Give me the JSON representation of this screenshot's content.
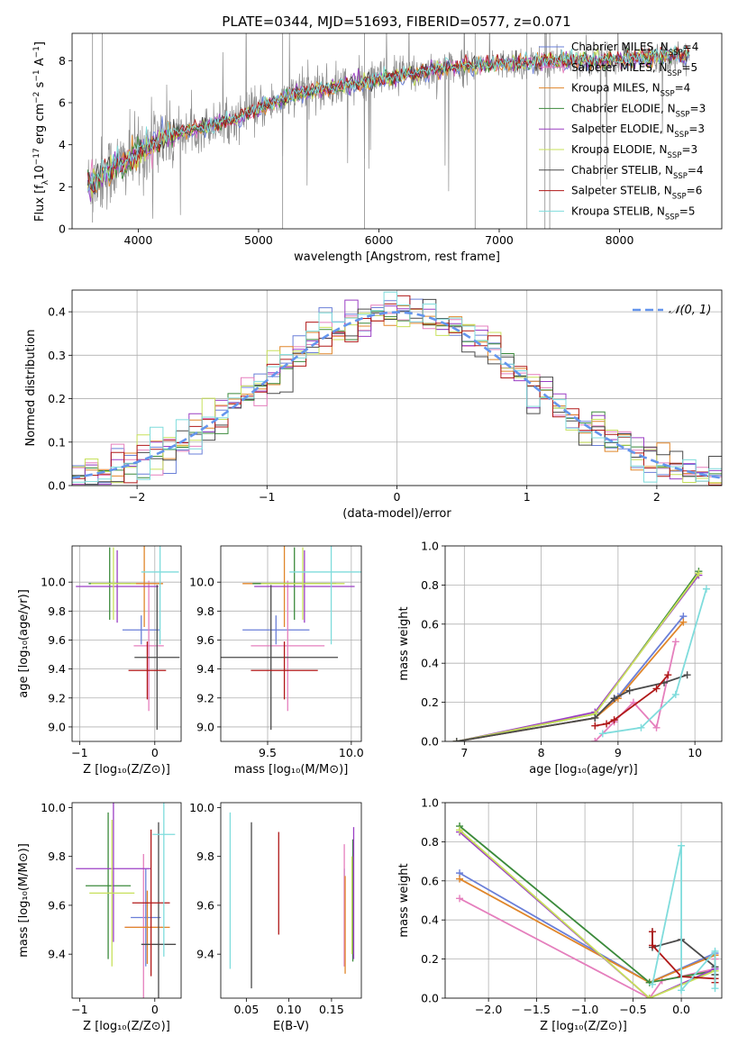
{
  "figure_title": "PLATE=0344, MJD=51693, FIBERID=0577, z=0.071",
  "colors": {
    "Chabrier MILES": "#6a7fd8",
    "Salpeter MILES": "#e57fbd",
    "Kroupa MILES": "#e0862a",
    "Chabrier ELODIE": "#3b8a3b",
    "Salpeter ELODIE": "#9b3fc4",
    "Kroupa ELODIE": "#c7e05a",
    "Chabrier STELIB": "#4a4a4a",
    "Salpeter STELIB": "#b01818",
    "Kroupa STELIB": "#7fdcdc",
    "data": "#8c8c8c",
    "normal": "#6495ed"
  },
  "chart_data": [
    {
      "id": "spectrum",
      "type": "line",
      "title": "PLATE=0344, MJD=51693, FIBERID=0577, z=0.071",
      "xlabel": "wavelength [Angstrom, rest frame]",
      "ylabel_parts": [
        "Flux [f",
        "λ",
        "10",
        "−17",
        " erg cm",
        "−2",
        " s",
        "−1",
        " A",
        "−1",
        "]"
      ],
      "xlim": [
        3450,
        8850
      ],
      "ylim": [
        0,
        9.3
      ],
      "xticks": [
        4000,
        5000,
        6000,
        7000,
        8000
      ],
      "yticks": [
        0,
        2,
        4,
        6,
        8
      ],
      "legend_position": "upper-right",
      "legend": [
        {
          "name": "Chabrier MILES",
          "nssp": "4"
        },
        {
          "name": "Salpeter MILES",
          "nssp": "5"
        },
        {
          "name": "Kroupa MILES",
          "nssp": "4"
        },
        {
          "name": "Chabrier ELODIE",
          "nssp": "3"
        },
        {
          "name": "Salpeter ELODIE",
          "nssp": "3"
        },
        {
          "name": "Kroupa ELODIE",
          "nssp": "3"
        },
        {
          "name": "Chabrier STELIB",
          "nssp": "4"
        },
        {
          "name": "Salpeter STELIB",
          "nssp": "6"
        },
        {
          "name": "Kroupa STELIB",
          "nssp": "5"
        }
      ],
      "legend_label_template": [
        "N",
        "SSP",
        "="
      ],
      "continuum": {
        "x": [
          3580,
          3700,
          3850,
          4000,
          4200,
          4500,
          4800,
          5000,
          5300,
          5600,
          6000,
          6300,
          6600,
          6900,
          7200,
          7500,
          7800,
          8100,
          8400,
          8580
        ],
        "y": [
          2.0,
          2.6,
          3.0,
          3.6,
          4.3,
          4.8,
          5.2,
          5.7,
          6.4,
          6.7,
          7.1,
          7.4,
          7.7,
          7.8,
          7.9,
          8.0,
          8.0,
          8.1,
          8.2,
          8.3
        ]
      }
    },
    {
      "id": "residuals",
      "type": "histogram",
      "xlabel": "(data-model)/error",
      "ylabel": "Normed distribution",
      "xlim": [
        -2.5,
        2.5
      ],
      "ylim": [
        0,
        0.45
      ],
      "xticks": [
        -2,
        -1,
        0,
        1,
        2
      ],
      "yticks": [
        0.0,
        0.1,
        0.2,
        0.3,
        0.4
      ],
      "bin_width": 0.1,
      "grid": true,
      "legend_position": "upper-right",
      "legend_label": "𝒩(0, 1)"
    },
    {
      "id": "age_vs_Z",
      "type": "errorbar",
      "xlabel": "Z [log₁₀(Z/Z⊙)]",
      "ylabel": "age  [log₁₀(age/yr)]",
      "xlim": [
        -1.1,
        0.35
      ],
      "ylim": [
        8.9,
        10.25
      ],
      "xticks": [
        -1,
        0
      ],
      "yticks": [
        9.0,
        9.2,
        9.4,
        9.6,
        9.8,
        10.0
      ],
      "grid": true,
      "points": [
        {
          "series": "Chabrier MILES",
          "x": -0.18,
          "xerr": 0.25,
          "y": 9.67,
          "yerr": 0.1
        },
        {
          "series": "Salpeter MILES",
          "x": -0.08,
          "xerr": 0.2,
          "y": 9.56,
          "yerr": 0.45
        },
        {
          "series": "Kroupa MILES",
          "x": -0.14,
          "xerr": 0.25,
          "y": 9.99,
          "yerr": 0.3
        },
        {
          "series": "Chabrier ELODIE",
          "x": -0.6,
          "xerr": 0.28,
          "y": 9.99,
          "yerr": 0.25
        },
        {
          "series": "Salpeter ELODIE",
          "x": -0.5,
          "xerr": 0.55,
          "y": 9.97,
          "yerr": 0.25
        },
        {
          "series": "Kroupa ELODIE",
          "x": -0.55,
          "xerr": 0.3,
          "y": 9.99,
          "yerr": 0.25
        },
        {
          "series": "Chabrier STELIB",
          "x": 0.03,
          "xerr": 0.3,
          "y": 9.48,
          "yerr": 0.5
        },
        {
          "series": "Salpeter STELIB",
          "x": -0.1,
          "xerr": 0.25,
          "y": 9.39,
          "yerr": 0.2
        },
        {
          "series": "Kroupa STELIB",
          "x": 0.07,
          "xerr": 0.25,
          "y": 10.07,
          "yerr": 0.5
        }
      ]
    },
    {
      "id": "age_vs_mass",
      "type": "errorbar",
      "xlabel": "mass [log₁₀(M/M⊙)]",
      "ylabel": "",
      "xlim": [
        9.22,
        10.06
      ],
      "ylim": [
        8.9,
        10.25
      ],
      "xticks": [
        9.5,
        10.0
      ],
      "yticks": [
        9.0,
        9.2,
        9.4,
        9.6,
        9.8,
        10.0
      ],
      "grid": true,
      "points": [
        {
          "series": "Chabrier MILES",
          "x": 9.55,
          "xerr": 0.2,
          "y": 9.67,
          "yerr": 0.1
        },
        {
          "series": "Salpeter MILES",
          "x": 9.62,
          "xerr": 0.22,
          "y": 9.56,
          "yerr": 0.45
        },
        {
          "series": "Kroupa MILES",
          "x": 9.6,
          "xerr": 0.25,
          "y": 9.99,
          "yerr": 0.3
        },
        {
          "series": "Chabrier ELODIE",
          "x": 9.66,
          "xerr": 0.25,
          "y": 9.99,
          "yerr": 0.25
        },
        {
          "series": "Salpeter ELODIE",
          "x": 9.72,
          "xerr": 0.3,
          "y": 9.97,
          "yerr": 0.25
        },
        {
          "series": "Kroupa ELODIE",
          "x": 9.71,
          "xerr": 0.25,
          "y": 9.99,
          "yerr": 0.25
        },
        {
          "series": "Chabrier STELIB",
          "x": 9.52,
          "xerr": 0.4,
          "y": 9.48,
          "yerr": 0.5
        },
        {
          "series": "Salpeter STELIB",
          "x": 9.6,
          "xerr": 0.2,
          "y": 9.39,
          "yerr": 0.2
        },
        {
          "series": "Kroupa STELIB",
          "x": 9.88,
          "xerr": 0.25,
          "y": 10.07,
          "yerr": 0.5
        }
      ]
    },
    {
      "id": "weight_vs_age",
      "type": "line",
      "xlabel": "age  [log₁₀(age/yr)]",
      "ylabel": "mass weight",
      "xlim": [
        6.75,
        10.35
      ],
      "ylim": [
        0,
        1.0
      ],
      "xticks": [
        7,
        8,
        9,
        10
      ],
      "yticks": [
        0.0,
        0.2,
        0.4,
        0.6,
        0.8,
        1.0
      ],
      "grid": true,
      "series": [
        {
          "name": "Chabrier MILES",
          "x": [
            6.9,
            8.7,
            9.0,
            9.85
          ],
          "y": [
            0.0,
            0.12,
            0.23,
            0.64
          ]
        },
        {
          "name": "Salpeter MILES",
          "x": [
            8.7,
            8.95,
            9.2,
            9.5,
            9.75
          ],
          "y": [
            0.0,
            0.1,
            0.2,
            0.07,
            0.51
          ]
        },
        {
          "name": "Kroupa MILES",
          "x": [
            6.9,
            8.7,
            9.0,
            9.85
          ],
          "y": [
            0.0,
            0.12,
            0.22,
            0.61
          ]
        },
        {
          "name": "Chabrier ELODIE",
          "x": [
            6.9,
            8.7,
            10.05
          ],
          "y": [
            0.0,
            0.14,
            0.87
          ]
        },
        {
          "name": "Salpeter ELODIE",
          "x": [
            6.9,
            8.7,
            10.05
          ],
          "y": [
            0.0,
            0.15,
            0.85
          ]
        },
        {
          "name": "Kroupa ELODIE",
          "x": [
            6.9,
            8.7,
            10.05
          ],
          "y": [
            0.0,
            0.14,
            0.86
          ]
        },
        {
          "name": "Chabrier STELIB",
          "x": [
            6.9,
            8.7,
            8.95,
            9.15,
            9.6,
            9.9
          ],
          "y": [
            0.0,
            0.12,
            0.22,
            0.26,
            0.3,
            0.34
          ]
        },
        {
          "name": "Salpeter STELIB",
          "x": [
            8.7,
            8.85,
            8.95,
            9.5,
            9.65
          ],
          "y": [
            0.08,
            0.09,
            0.11,
            0.27,
            0.34
          ]
        },
        {
          "name": "Kroupa STELIB",
          "x": [
            8.8,
            9.3,
            9.75,
            10.15
          ],
          "y": [
            0.04,
            0.07,
            0.24,
            0.78
          ]
        }
      ]
    },
    {
      "id": "mass_vs_Z",
      "type": "errorbar",
      "xlabel": "Z [log₁₀(Z/Z⊙)]",
      "ylabel": "mass [log₁₀(M/M⊙)]",
      "xlim": [
        -1.1,
        0.35
      ],
      "ylim": [
        9.22,
        10.02
      ],
      "xticks": [
        -1,
        0
      ],
      "yticks": [
        9.4,
        9.6,
        9.8,
        10.0
      ],
      "grid": false,
      "points": [
        {
          "series": "Chabrier MILES",
          "x": -0.12,
          "xerr": 0.2,
          "y": 9.55,
          "yerr": 0.2
        },
        {
          "series": "Salpeter MILES",
          "x": -0.15,
          "xerr": 0.25,
          "y": 9.51,
          "yerr": 0.3
        },
        {
          "series": "Kroupa MILES",
          "x": -0.1,
          "xerr": 0.3,
          "y": 9.51,
          "yerr": 0.15
        },
        {
          "series": "Chabrier ELODIE",
          "x": -0.62,
          "xerr": 0.3,
          "y": 9.68,
          "yerr": 0.3
        },
        {
          "series": "Salpeter ELODIE",
          "x": -0.55,
          "xerr": 0.5,
          "y": 9.75,
          "yerr": 0.3
        },
        {
          "series": "Kroupa ELODIE",
          "x": -0.57,
          "xerr": 0.3,
          "y": 9.65,
          "yerr": 0.3
        },
        {
          "series": "Chabrier STELIB",
          "x": 0.05,
          "xerr": 0.23,
          "y": 9.44,
          "yerr": 0.5
        },
        {
          "series": "Salpeter STELIB",
          "x": -0.05,
          "xerr": 0.25,
          "y": 9.61,
          "yerr": 0.3
        },
        {
          "series": "Kroupa STELIB",
          "x": 0.12,
          "xerr": 0.15,
          "y": 9.89,
          "yerr": 0.5
        }
      ]
    },
    {
      "id": "mass_vs_ebv",
      "type": "errorbar",
      "xlabel": "E(B-V)",
      "ylabel": "",
      "xlim": [
        0.02,
        0.185
      ],
      "ylim": [
        9.22,
        10.02
      ],
      "xticks": [
        0.05,
        0.1,
        0.15
      ],
      "yticks": [
        9.4,
        9.6,
        9.8,
        10.0
      ],
      "grid": false,
      "points": [
        {
          "series": "Chabrier MILES",
          "x": 0.165,
          "y": 9.55,
          "yerr": 0.2
        },
        {
          "series": "Salpeter MILES",
          "x": 0.165,
          "y": 9.6,
          "yerr": 0.25
        },
        {
          "series": "Kroupa MILES",
          "x": 0.166,
          "y": 9.52,
          "yerr": 0.2
        },
        {
          "series": "Chabrier ELODIE",
          "x": 0.175,
          "y": 9.62,
          "yerr": 0.25
        },
        {
          "series": "Salpeter ELODIE",
          "x": 0.176,
          "y": 9.65,
          "yerr": 0.27
        },
        {
          "series": "Kroupa ELODIE",
          "x": 0.174,
          "y": 9.6,
          "yerr": 0.2
        },
        {
          "series": "Chabrier STELIB",
          "x": 0.056,
          "y": 9.6,
          "yerr": 0.34
        },
        {
          "series": "Salpeter STELIB",
          "x": 0.088,
          "y": 9.69,
          "yerr": 0.21
        },
        {
          "series": "Kroupa STELIB",
          "x": 0.031,
          "y": 9.66,
          "yerr": 0.32
        }
      ]
    },
    {
      "id": "weight_vs_Z",
      "type": "line",
      "xlabel": "Z [log₁₀(Z/Z⊙)]",
      "ylabel": "mass weight",
      "xlim": [
        -2.45,
        0.42
      ],
      "ylim": [
        0,
        1.0
      ],
      "xticks": [
        -2.0,
        -1.5,
        -1.0,
        -0.5,
        0.0
      ],
      "yticks": [
        0.0,
        0.2,
        0.4,
        0.6,
        0.8,
        1.0
      ],
      "grid": true,
      "series": [
        {
          "name": "Chabrier MILES",
          "x": [
            -2.3,
            -0.33,
            0.35,
            0.35
          ],
          "y": [
            0.64,
            0.08,
            0.23,
            0.12
          ]
        },
        {
          "name": "Salpeter MILES",
          "x": [
            -2.3,
            -0.33,
            -0.2,
            0.35,
            0.35
          ],
          "y": [
            0.51,
            0.0,
            0.09,
            0.15,
            0.2
          ]
        },
        {
          "name": "Kroupa MILES",
          "x": [
            -2.3,
            -0.33,
            0.35,
            0.35
          ],
          "y": [
            0.61,
            0.08,
            0.22,
            0.12
          ]
        },
        {
          "name": "Chabrier ELODIE",
          "x": [
            -2.3,
            -0.33,
            0.35
          ],
          "y": [
            0.88,
            0.08,
            0.14
          ]
        },
        {
          "name": "Salpeter ELODIE",
          "x": [
            -2.3,
            -0.33,
            0.35
          ],
          "y": [
            0.85,
            0.0,
            0.15
          ]
        },
        {
          "name": "Kroupa ELODIE",
          "x": [
            -2.3,
            -0.33,
            0.35
          ],
          "y": [
            0.86,
            0.0,
            0.14
          ]
        },
        {
          "name": "Chabrier STELIB",
          "x": [
            -0.3,
            -0.3,
            0.0,
            0.35,
            0.35
          ],
          "y": [
            0.34,
            0.26,
            0.3,
            0.16,
            0.12
          ]
        },
        {
          "name": "Salpeter STELIB",
          "x": [
            -0.3,
            -0.3,
            0.0,
            0.35,
            0.35
          ],
          "y": [
            0.34,
            0.27,
            0.11,
            0.1,
            0.08
          ]
        },
        {
          "name": "Kroupa STELIB",
          "x": [
            -0.3,
            0.0,
            0.0,
            0.35,
            0.35
          ],
          "y": [
            0.07,
            0.78,
            0.04,
            0.24,
            0.05
          ]
        }
      ]
    }
  ]
}
